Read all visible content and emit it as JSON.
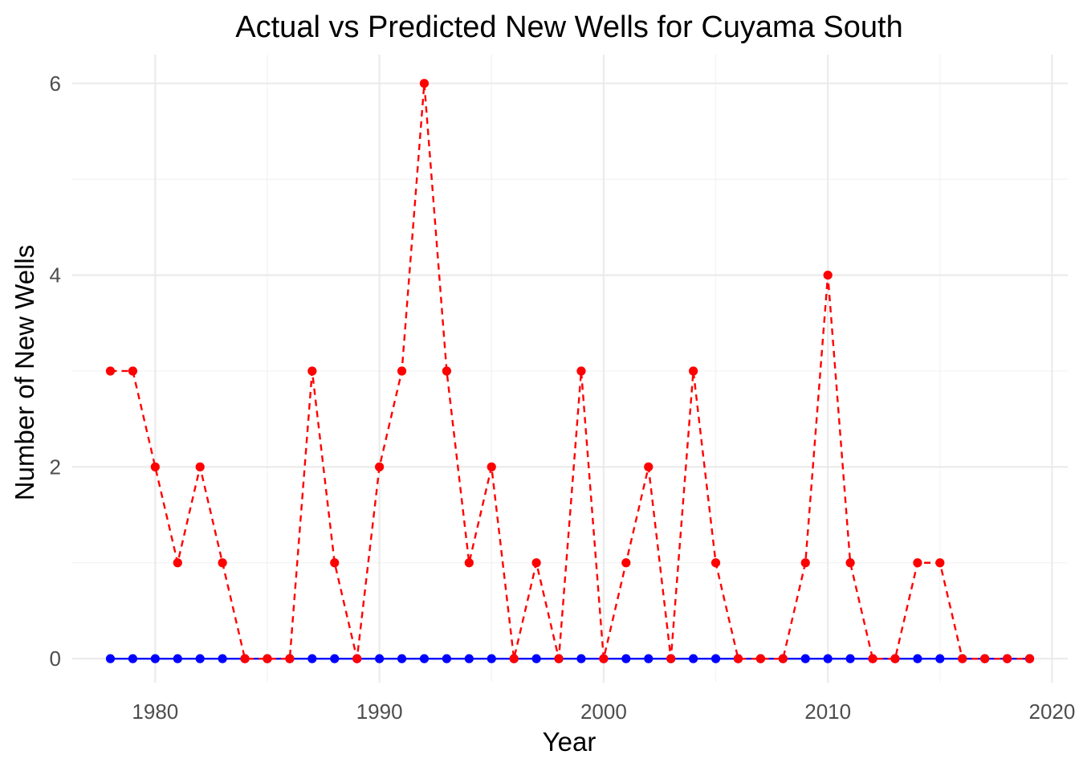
{
  "chart_data": {
    "type": "line",
    "title": "Actual vs Predicted New Wells for Cuyama  South",
    "xlabel": "Year",
    "ylabel": "Number of New Wells",
    "xlim": [
      1976.3,
      2020.7
    ],
    "ylim": [
      -0.25,
      6.3
    ],
    "x_ticks": [
      1980,
      1990,
      2000,
      2010,
      2020
    ],
    "y_ticks": [
      0,
      2,
      4,
      6
    ],
    "x_minor_ticks": [
      1985,
      1995,
      2005,
      2015
    ],
    "y_minor_ticks": [
      1,
      3,
      5
    ],
    "grid": true,
    "x": [
      1978,
      1979,
      1980,
      1981,
      1982,
      1983,
      1984,
      1985,
      1986,
      1987,
      1988,
      1989,
      1990,
      1991,
      1992,
      1993,
      1994,
      1995,
      1996,
      1997,
      1998,
      1999,
      2000,
      2001,
      2002,
      2003,
      2004,
      2005,
      2006,
      2007,
      2008,
      2009,
      2010,
      2011,
      2012,
      2013,
      2014,
      2015,
      2016,
      2017,
      2018,
      2019
    ],
    "series": [
      {
        "color": "#0000ff",
        "line_style": "solid",
        "values": [
          0,
          0,
          0,
          0,
          0,
          0,
          0,
          0,
          0,
          0,
          0,
          0,
          0,
          0,
          0,
          0,
          0,
          0,
          0,
          0,
          0,
          0,
          0,
          0,
          0,
          0,
          0,
          0,
          0,
          0,
          0,
          0,
          0,
          0,
          0,
          0,
          0,
          0,
          0,
          0,
          0,
          0
        ]
      },
      {
        "color": "#ff0000",
        "line_style": "dashed",
        "values": [
          3,
          3,
          2,
          1,
          2,
          1,
          0,
          0,
          0,
          3,
          1,
          0,
          2,
          3,
          6,
          3,
          1,
          2,
          0,
          1,
          0,
          3,
          0,
          1,
          2,
          0,
          3,
          1,
          0,
          0,
          0,
          1,
          4,
          1,
          0,
          0,
          1,
          1,
          0,
          0,
          0,
          0
        ]
      }
    ]
  }
}
